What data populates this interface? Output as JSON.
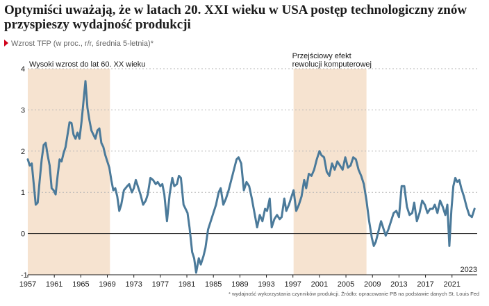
{
  "header": {
    "title": "Optymiści uważają, że w latach 20. XXI wieku w USA postęp technologiczny znów przyspieszy wydajność produkcji",
    "subtitle": "Wzrost TFP (w proc., r/r, średnia 5-letnia)*"
  },
  "footnote": "* wydajność wykorzystania czynników produkcji. Źródło: opracowanie PB na podstawie danych St. Louis Fed",
  "colors": {
    "line": "#4b7a9a",
    "shade": "#f6e3d0",
    "grid": "#b5b5b5",
    "marker": "#d0021b"
  },
  "chart_data": {
    "type": "line",
    "title": "Optymiści uważają, że w latach 20. XXI wieku w USA postęp technologiczny znów przyspieszy wydajność produkcji",
    "subtitle": "Wzrost TFP (w proc., r/r, średnia 5-letnia)*",
    "xlabel": "",
    "ylabel": "",
    "xlim": [
      1957,
      2024.8
    ],
    "ylim": [
      -1,
      4
    ],
    "x_ticks": [
      1957,
      1961,
      1965,
      1969,
      1973,
      1977,
      1981,
      1985,
      1989,
      1993,
      1997,
      2001,
      2005,
      2009,
      2013,
      2017,
      2021
    ],
    "y_ticks": [
      -1,
      0,
      1,
      2,
      3,
      4
    ],
    "grid": "horizontal dashed",
    "shaded_periods": [
      {
        "from": 1957,
        "to": 1969.4,
        "label": "Wysoki wzrost do lat 60. XX wieku"
      },
      {
        "from": 1997.1,
        "to": 2008.1,
        "label_lines": [
          "Przejściowy efekt",
          "rewolucji komputerowej"
        ]
      }
    ],
    "last_year_label": "2023",
    "series": [
      {
        "x": [
          1957.0,
          1957.3,
          1957.6,
          1957.9,
          1958.2,
          1958.5,
          1958.8,
          1959.1,
          1959.4,
          1959.7,
          1960.0,
          1960.3,
          1960.6,
          1960.9,
          1961.2,
          1961.5,
          1961.8,
          1962.1,
          1962.4,
          1962.7,
          1963.0,
          1963.3,
          1963.6,
          1963.9,
          1964.2,
          1964.5,
          1964.8,
          1965.1,
          1965.4,
          1965.7,
          1966.0,
          1966.3,
          1966.6,
          1966.9,
          1967.2,
          1967.5,
          1967.8,
          1968.1,
          1968.4,
          1968.7,
          1969.0,
          1969.3,
          1969.6,
          1969.9,
          1970.2,
          1970.5,
          1970.8,
          1971.1,
          1971.5,
          1972.0,
          1972.3,
          1972.7,
          1973.0,
          1973.3,
          1973.6,
          1974.0,
          1974.4,
          1974.8,
          1975.1,
          1975.5,
          1975.9,
          1976.3,
          1976.6,
          1977.0,
          1977.3,
          1977.6,
          1978.0,
          1978.4,
          1978.8,
          1979.1,
          1979.5,
          1979.8,
          1980.1,
          1980.5,
          1980.8,
          1981.1,
          1981.4,
          1981.8,
          1982.1,
          1982.4,
          1982.8,
          1983.1,
          1983.5,
          1983.8,
          1984.2,
          1984.6,
          1985.0,
          1985.4,
          1985.8,
          1986.1,
          1986.5,
          1986.9,
          1987.3,
          1987.7,
          1988.1,
          1988.5,
          1988.8,
          1989.2,
          1989.6,
          1990.0,
          1990.4,
          1990.8,
          1991.2,
          1991.6,
          1992.0,
          1992.4,
          1992.8,
          1993.1,
          1993.5,
          1993.8,
          1994.2,
          1994.6,
          1995.0,
          1995.3,
          1995.7,
          1996.0,
          1996.4,
          1996.8,
          1997.1,
          1997.5,
          1997.9,
          1998.3,
          1998.7,
          1999.0,
          1999.4,
          1999.8,
          2000.2,
          2000.6,
          2001.0,
          2001.3,
          2001.7,
          2002.1,
          2002.5,
          2002.9,
          2003.3,
          2003.7,
          2004.1,
          2004.5,
          2004.9,
          2005.3,
          2005.7,
          2006.1,
          2006.5,
          2006.9,
          2007.3,
          2007.7,
          2008.1,
          2008.5,
          2008.9,
          2009.2,
          2009.5,
          2009.9,
          2010.3,
          2010.7,
          2011.0,
          2011.4,
          2011.8,
          2012.2,
          2012.6,
          2013.0,
          2013.4,
          2013.8,
          2014.2,
          2014.6,
          2015.0,
          2015.3,
          2015.7,
          2016.1,
          2016.5,
          2016.9,
          2017.3,
          2017.7,
          2018.1,
          2018.4,
          2018.8,
          2019.2,
          2019.6,
          2020.0,
          2020.3,
          2020.6,
          2020.9,
          2021.2,
          2021.5,
          2021.8,
          2022.1,
          2022.4,
          2022.8,
          2023.2,
          2023.6,
          2024.0,
          2024.4
        ],
        "y": [
          1.8,
          1.65,
          1.7,
          1.2,
          0.7,
          0.75,
          1.3,
          1.8,
          2.15,
          2.2,
          1.9,
          1.65,
          1.1,
          1.05,
          0.95,
          1.4,
          1.8,
          1.75,
          1.95,
          2.1,
          2.4,
          2.7,
          2.68,
          2.4,
          2.3,
          2.45,
          2.3,
          2.7,
          3.2,
          3.7,
          3.05,
          2.75,
          2.5,
          2.4,
          2.3,
          2.5,
          2.55,
          2.2,
          2.1,
          1.9,
          1.75,
          1.6,
          1.3,
          1.05,
          1.1,
          0.9,
          0.55,
          0.7,
          1.05,
          1.15,
          1.2,
          1.0,
          1.1,
          1.3,
          1.15,
          0.95,
          0.7,
          0.8,
          0.95,
          1.35,
          1.3,
          1.2,
          1.25,
          1.15,
          1.2,
          0.95,
          0.3,
          0.95,
          1.35,
          1.15,
          1.2,
          1.4,
          1.35,
          0.7,
          0.6,
          0.5,
          0.15,
          -0.45,
          -0.6,
          -0.95,
          -0.6,
          -0.75,
          -0.55,
          -0.35,
          0.1,
          0.3,
          0.5,
          0.7,
          1.0,
          1.1,
          0.7,
          0.85,
          1.05,
          1.3,
          1.55,
          1.8,
          1.85,
          1.7,
          1.05,
          1.25,
          1.15,
          0.85,
          0.5,
          0.15,
          0.45,
          0.3,
          0.6,
          0.55,
          0.85,
          0.15,
          0.35,
          0.45,
          0.35,
          0.4,
          0.85,
          0.55,
          0.7,
          0.9,
          1.05,
          0.55,
          0.7,
          0.9,
          1.3,
          1.1,
          1.45,
          1.4,
          1.55,
          1.8,
          2.0,
          1.9,
          1.85,
          1.5,
          1.4,
          1.7,
          1.55,
          1.75,
          1.65,
          1.55,
          1.85,
          1.6,
          1.65,
          1.85,
          1.8,
          1.55,
          1.4,
          1.2,
          0.8,
          0.3,
          -0.1,
          -0.3,
          -0.2,
          0.05,
          0.3,
          0.1,
          -0.05,
          0.1,
          0.3,
          0.5,
          0.55,
          0.4,
          1.15,
          1.15,
          0.65,
          0.45,
          0.5,
          0.75,
          0.3,
          0.5,
          0.8,
          0.7,
          0.5,
          0.6,
          0.6,
          0.7,
          0.5,
          0.8,
          0.65,
          0.45,
          0.7,
          -0.3,
          0.55,
          1.15,
          1.35,
          1.25,
          1.3,
          1.1,
          0.9,
          0.65,
          0.45,
          0.4,
          0.6
        ]
      }
    ]
  }
}
